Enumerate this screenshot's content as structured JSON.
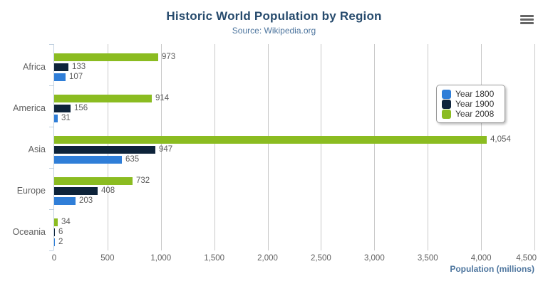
{
  "header": {
    "title": "Historic World Population by Region",
    "subtitle": "Source: Wikipedia.org"
  },
  "context_menu": {
    "icon": "hamburger-menu-icon",
    "color": "#666666"
  },
  "chart_data": {
    "type": "bar",
    "orientation": "horizontal",
    "title": "Historic World Population by Region",
    "subtitle": "Source: Wikipedia.org",
    "categories": [
      "Africa",
      "America",
      "Asia",
      "Europe",
      "Oceania"
    ],
    "series": [
      {
        "name": "Year 1800",
        "color": "#2f7ed8",
        "values": [
          107,
          31,
          635,
          203,
          2
        ],
        "labels": [
          "107",
          "31",
          "635",
          "203",
          "2"
        ]
      },
      {
        "name": "Year 1900",
        "color": "#0d233a",
        "values": [
          133,
          156,
          947,
          408,
          6
        ],
        "labels": [
          "133",
          "156",
          "947",
          "408",
          "6"
        ]
      },
      {
        "name": "Year 2008",
        "color": "#8bbc21",
        "values": [
          973,
          914,
          4054,
          732,
          34
        ],
        "labels": [
          "973",
          "914",
          "4,054",
          "732",
          "34"
        ]
      }
    ],
    "series_display_order_top_to_bottom": [
      "Year 2008",
      "Year 1900",
      "Year 1800"
    ],
    "xlabel": "Population (millions)",
    "xlim": [
      0,
      4500
    ],
    "xticks": [
      0,
      500,
      1000,
      1500,
      2000,
      2500,
      3000,
      3500,
      4000,
      4500
    ],
    "xtick_labels": [
      "0",
      "500",
      "1,000",
      "1,500",
      "2,000",
      "2,500",
      "3,000",
      "3,500",
      "4,000",
      "4,500"
    ],
    "grid": true,
    "legend_position": "right-inside",
    "data_labels": true
  },
  "colors": {
    "title": "#274b6d",
    "subtitle": "#4d759e",
    "axis_labels": "#606060",
    "data_labels": "#5c5c5c",
    "gridline": "#c9c9c9",
    "axis_line": "#c0d0e0",
    "legend_border": "#999999",
    "legend_text": "#333333",
    "background": "#ffffff"
  }
}
